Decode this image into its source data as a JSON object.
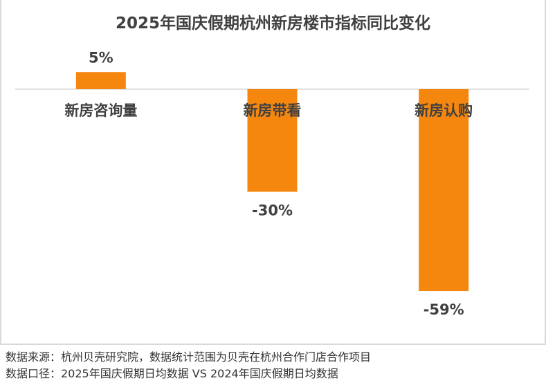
{
  "chart_data": {
    "type": "bar",
    "title": "2025年国庆假期杭州新房楼市指标同比变化",
    "categories": [
      "新房咨询量",
      "新房带看",
      "新房认购"
    ],
    "values": [
      5,
      -30,
      -59
    ],
    "value_labels": [
      "5%",
      "-30%",
      "-59%"
    ],
    "ylim": [
      -65,
      10
    ],
    "unit": "%",
    "grid": false,
    "legend": "none",
    "colors": {
      "bar": "#F5870F",
      "axis": "#d9d9d9",
      "text": "#404040"
    }
  },
  "footer": {
    "source": "数据来源：杭州贝壳研究院，数据统计范围为贝壳在杭州合作门店合作项目",
    "scope": "数据口径：2025年国庆假期日均数据 VS 2024年国庆假期日均数据"
  }
}
